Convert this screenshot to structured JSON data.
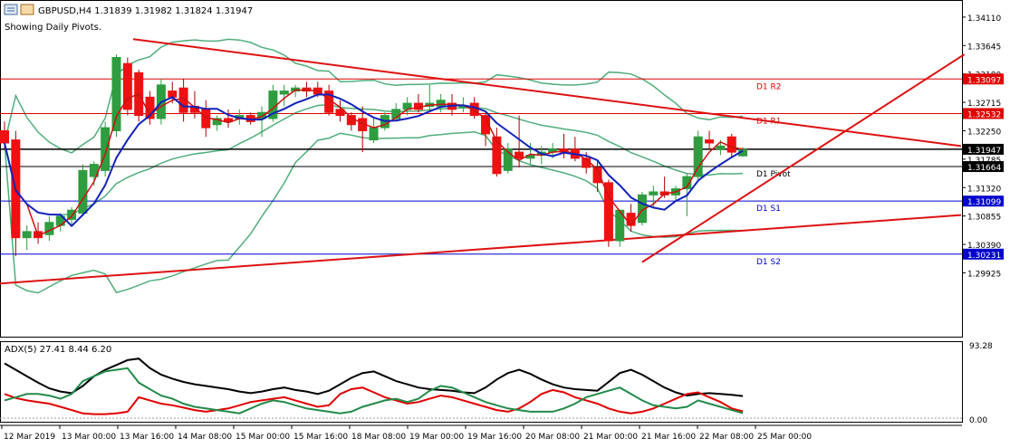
{
  "header": {
    "symbol_line": "GBPUSD,H4  1.31839 1.31982 1.31824 1.31947",
    "pivots_note": "Showing Daily Pivots."
  },
  "indicator": {
    "label": "ADX(5) 27.41 8.44 6.20",
    "axis_max": "93.28",
    "axis_min": "0.00"
  },
  "chart_data": {
    "type": "candlestick",
    "symbol": "GBPUSD",
    "timeframe": "H4",
    "ohlc": {
      "open": 1.31839,
      "high": 1.31982,
      "low": 1.31824,
      "close": 1.31947
    },
    "ylim": [
      1.2888,
      1.3439
    ],
    "yticks": [
      "1.34110",
      "1.33645",
      "1.33180",
      "1.32715",
      "1.32250",
      "1.31785",
      "1.31320",
      "1.30855",
      "1.30390",
      "1.29925"
    ],
    "xticks": [
      "12 Mar 2019",
      "13 Mar 00:00",
      "13 Mar 16:00",
      "14 Mar 08:00",
      "15 Mar 00:00",
      "15 Mar 16:00",
      "18 Mar 08:00",
      "19 Mar 00:00",
      "19 Mar 16:00",
      "20 Mar 08:00",
      "21 Mar 00:00",
      "21 Mar 16:00",
      "22 Mar 08:00",
      "25 Mar 00:00"
    ],
    "pivots": [
      {
        "label": "D1 R2",
        "value": 1.33097,
        "color": "#e00000"
      },
      {
        "label": "D1 R1",
        "value": 1.32532,
        "color": "#e00000"
      },
      {
        "label": "D1 Pivot",
        "value": 1.31664,
        "color": "#000000"
      },
      {
        "label": "D1 S1",
        "value": 1.31099,
        "color": "#0000cc"
      },
      {
        "label": "D1 S2",
        "value": 1.30231,
        "color": "#0000cc"
      }
    ],
    "current_price": 1.31947,
    "candles": [
      [
        1.3225,
        1.324,
        1.3195,
        1.3205
      ],
      [
        1.321,
        1.3225,
        1.302,
        1.305
      ],
      [
        1.305,
        1.307,
        1.303,
        1.306
      ],
      [
        1.306,
        1.3075,
        1.304,
        1.305
      ],
      [
        1.3055,
        1.3085,
        1.3045,
        1.3075
      ],
      [
        1.307,
        1.309,
        1.306,
        1.3085
      ],
      [
        1.308,
        1.31,
        1.307,
        1.3095
      ],
      [
        1.309,
        1.317,
        1.3085,
        1.316
      ],
      [
        1.315,
        1.3175,
        1.3135,
        1.317
      ],
      [
        1.316,
        1.324,
        1.315,
        1.323
      ],
      [
        1.3225,
        1.335,
        1.3215,
        1.3345
      ],
      [
        1.3335,
        1.3345,
        1.325,
        1.326
      ],
      [
        1.332,
        1.3325,
        1.324,
        1.325
      ],
      [
        1.328,
        1.329,
        1.3235,
        1.3245
      ],
      [
        1.3245,
        1.331,
        1.3235,
        1.33
      ],
      [
        1.329,
        1.3305,
        1.327,
        1.328
      ],
      [
        1.3295,
        1.331,
        1.324,
        1.3255
      ],
      [
        1.3265,
        1.329,
        1.3245,
        1.3255
      ],
      [
        1.326,
        1.3275,
        1.3215,
        1.323
      ],
      [
        1.3235,
        1.325,
        1.3225,
        1.3245
      ],
      [
        1.3245,
        1.326,
        1.323,
        1.324
      ],
      [
        1.3245,
        1.326,
        1.3235,
        1.325
      ],
      [
        1.325,
        1.3255,
        1.3235,
        1.324
      ],
      [
        1.3245,
        1.3265,
        1.3215,
        1.3255
      ],
      [
        1.3245,
        1.33,
        1.324,
        1.329
      ],
      [
        1.3285,
        1.33,
        1.3265,
        1.329
      ],
      [
        1.329,
        1.33,
        1.328,
        1.3295
      ],
      [
        1.3295,
        1.3305,
        1.328,
        1.329
      ],
      [
        1.3295,
        1.3305,
        1.328,
        1.3285
      ],
      [
        1.329,
        1.33,
        1.325,
        1.3255
      ],
      [
        1.326,
        1.3275,
        1.324,
        1.325
      ],
      [
        1.325,
        1.3255,
        1.3225,
        1.3235
      ],
      [
        1.3245,
        1.3265,
        1.319,
        1.3225
      ],
      [
        1.321,
        1.3245,
        1.3205,
        1.323
      ],
      [
        1.323,
        1.3255,
        1.3225,
        1.325
      ],
      [
        1.3245,
        1.327,
        1.324,
        1.326
      ],
      [
        1.326,
        1.328,
        1.325,
        1.327
      ],
      [
        1.327,
        1.3285,
        1.3255,
        1.326
      ],
      [
        1.3265,
        1.33,
        1.3255,
        1.327
      ],
      [
        1.3265,
        1.3285,
        1.3255,
        1.3275
      ],
      [
        1.327,
        1.3285,
        1.325,
        1.326
      ],
      [
        1.3265,
        1.328,
        1.3255,
        1.3265
      ],
      [
        1.327,
        1.328,
        1.3245,
        1.325
      ],
      [
        1.325,
        1.3255,
        1.32,
        1.322
      ],
      [
        1.3215,
        1.323,
        1.315,
        1.3155
      ],
      [
        1.316,
        1.3205,
        1.3155,
        1.3195
      ],
      [
        1.319,
        1.325,
        1.3165,
        1.318
      ],
      [
        1.318,
        1.3205,
        1.317,
        1.3185
      ],
      [
        1.3185,
        1.32,
        1.317,
        1.319
      ],
      [
        1.319,
        1.3205,
        1.318,
        1.3195
      ],
      [
        1.3195,
        1.322,
        1.318,
        1.319
      ],
      [
        1.3195,
        1.3215,
        1.3175,
        1.318
      ],
      [
        1.318,
        1.319,
        1.3155,
        1.3165
      ],
      [
        1.3165,
        1.3175,
        1.3125,
        1.314
      ],
      [
        1.314,
        1.3145,
        1.3035,
        1.3045
      ],
      [
        1.3045,
        1.3095,
        1.3035,
        1.3095
      ],
      [
        1.309,
        1.3105,
        1.306,
        1.307
      ],
      [
        1.3075,
        1.3125,
        1.307,
        1.312
      ],
      [
        1.312,
        1.3135,
        1.31,
        1.3125
      ],
      [
        1.3125,
        1.315,
        1.3115,
        1.312
      ],
      [
        1.312,
        1.3135,
        1.311,
        1.313
      ],
      [
        1.313,
        1.3155,
        1.3085,
        1.315
      ],
      [
        1.315,
        1.3225,
        1.3145,
        1.3215
      ],
      [
        1.321,
        1.3225,
        1.3195,
        1.3205
      ],
      [
        1.3195,
        1.321,
        1.3185,
        1.32
      ],
      [
        1.3215,
        1.322,
        1.318,
        1.319
      ],
      [
        1.31839,
        1.31982,
        1.31824,
        1.31947
      ]
    ],
    "indicator": {
      "name": "ADX(5)",
      "ylim": [
        0,
        93.28
      ],
      "series": [
        {
          "name": "ADX",
          "color": "#000000",
          "values": [
            68,
            60,
            52,
            44,
            37,
            33,
            31,
            40,
            52,
            60,
            66,
            72,
            74,
            62,
            54,
            49,
            45,
            42,
            40,
            38,
            36,
            33,
            31,
            33,
            36,
            38,
            35,
            33,
            30,
            34,
            42,
            50,
            56,
            58,
            52,
            46,
            42,
            38,
            36,
            35,
            34,
            32,
            31,
            38,
            48,
            56,
            60,
            55,
            48,
            42,
            38,
            36,
            35,
            34,
            45,
            56,
            60,
            54,
            46,
            38,
            32,
            28,
            30,
            31,
            30,
            29,
            27.41
          ]
        },
        {
          "name": "+DI",
          "color": "#e00000",
          "values": [
            30,
            25,
            22,
            20,
            18,
            14,
            10,
            6,
            5,
            5,
            6,
            8,
            26,
            22,
            18,
            16,
            13,
            10,
            8,
            10,
            12,
            16,
            20,
            22,
            24,
            26,
            22,
            18,
            14,
            16,
            30,
            36,
            38,
            32,
            26,
            22,
            18,
            20,
            24,
            28,
            26,
            22,
            18,
            14,
            10,
            8,
            12,
            20,
            30,
            35,
            32,
            26,
            22,
            18,
            12,
            8,
            6,
            8,
            12,
            18,
            24,
            30,
            32,
            26,
            20,
            12,
            8.44
          ]
        },
        {
          "name": "-DI",
          "color": "#228b4a",
          "values": [
            22,
            26,
            30,
            30,
            28,
            24,
            30,
            46,
            52,
            58,
            60,
            62,
            44,
            36,
            28,
            24,
            18,
            14,
            12,
            10,
            8,
            6,
            12,
            18,
            22,
            20,
            16,
            12,
            10,
            8,
            6,
            8,
            14,
            18,
            22,
            24,
            20,
            24,
            34,
            40,
            38,
            32,
            26,
            20,
            16,
            12,
            10,
            8,
            8,
            8,
            12,
            18,
            26,
            30,
            34,
            38,
            30,
            22,
            16,
            14,
            12,
            14,
            22,
            18,
            14,
            10,
            6.2
          ]
        }
      ]
    }
  }
}
